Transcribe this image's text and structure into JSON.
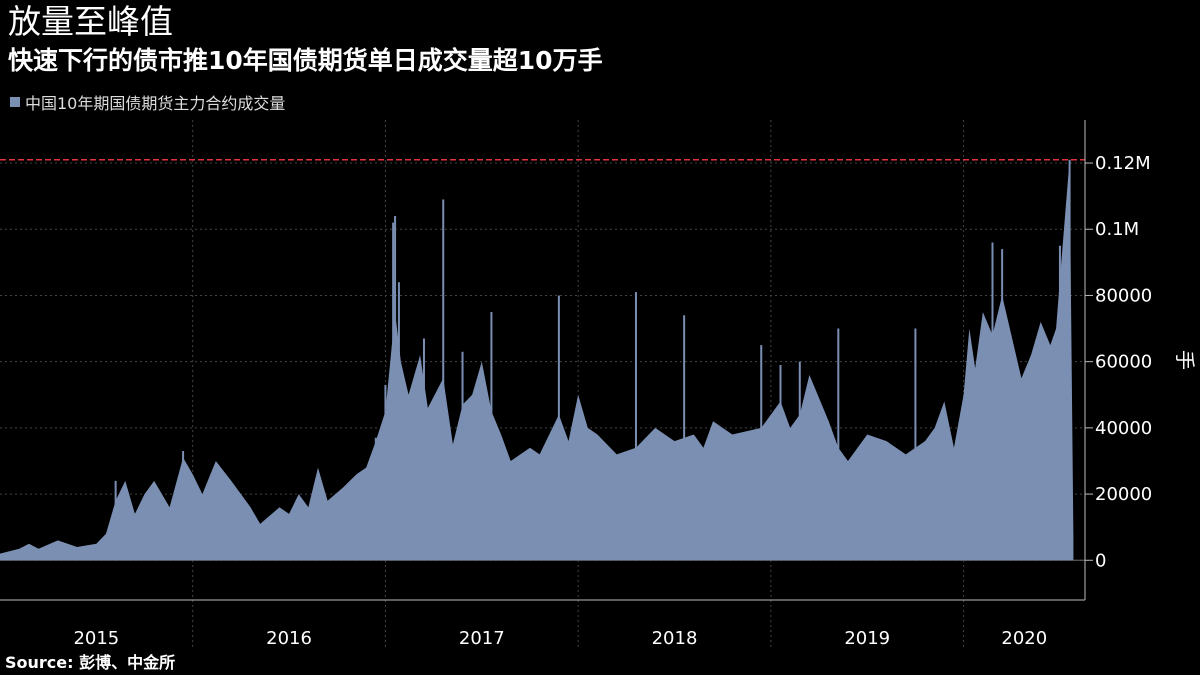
{
  "title": "放量至峰值",
  "subtitle": "快速下行的债市推10年国债期货单日成交量超10万手",
  "source": "Source: 彭博、中金所",
  "chart_data": {
    "type": "bar",
    "series": [
      {
        "name": "中国10年期国债期货主力合约成交量",
        "color": "#7b8fb3"
      }
    ],
    "ylabel": "手",
    "ylim": [
      -12000,
      133000
    ],
    "xlim": [
      2015.0,
      2020.63
    ],
    "yticks": [
      {
        "value": 0,
        "label": "0"
      },
      {
        "value": 20000,
        "label": "20000"
      },
      {
        "value": 40000,
        "label": "40000"
      },
      {
        "value": 60000,
        "label": "60000"
      },
      {
        "value": 80000,
        "label": "80000"
      },
      {
        "value": 100000,
        "label": "0.1M"
      },
      {
        "value": 120000,
        "label": "0.12M"
      }
    ],
    "xticks": [
      "2015",
      "2016",
      "2017",
      "2018",
      "2019",
      "2020"
    ],
    "reference_line": {
      "value": 121000,
      "color": "#e0333b",
      "style": "dashed"
    },
    "grid": true,
    "legend": "top-left",
    "points": [
      [
        2015.0,
        2000
      ],
      [
        2015.1,
        3500
      ],
      [
        2015.15,
        5000
      ],
      [
        2015.2,
        3500
      ],
      [
        2015.3,
        6000
      ],
      [
        2015.4,
        4000
      ],
      [
        2015.5,
        5000
      ],
      [
        2015.55,
        8000
      ],
      [
        2015.6,
        18000
      ],
      [
        2015.65,
        24000
      ],
      [
        2015.7,
        14000
      ],
      [
        2015.75,
        20000
      ],
      [
        2015.8,
        24000
      ],
      [
        2015.88,
        16000
      ],
      [
        2015.95,
        31000
      ],
      [
        2016.0,
        26000
      ],
      [
        2016.05,
        20000
      ],
      [
        2016.12,
        30000
      ],
      [
        2016.2,
        24000
      ],
      [
        2016.3,
        16000
      ],
      [
        2016.35,
        11000
      ],
      [
        2016.45,
        16000
      ],
      [
        2016.5,
        14000
      ],
      [
        2016.55,
        20000
      ],
      [
        2016.6,
        16000
      ],
      [
        2016.65,
        28000
      ],
      [
        2016.7,
        18000
      ],
      [
        2016.78,
        22000
      ],
      [
        2016.85,
        26000
      ],
      [
        2016.9,
        28000
      ],
      [
        2016.95,
        36000
      ],
      [
        2017.0,
        45000
      ],
      [
        2017.05,
        75000
      ],
      [
        2017.08,
        60000
      ],
      [
        2017.12,
        50000
      ],
      [
        2017.18,
        62000
      ],
      [
        2017.22,
        46000
      ],
      [
        2017.3,
        55000
      ],
      [
        2017.35,
        35000
      ],
      [
        2017.4,
        47000
      ],
      [
        2017.45,
        50000
      ],
      [
        2017.5,
        60000
      ],
      [
        2017.55,
        45000
      ],
      [
        2017.6,
        38000
      ],
      [
        2017.65,
        30000
      ],
      [
        2017.75,
        34000
      ],
      [
        2017.8,
        32000
      ],
      [
        2017.9,
        44000
      ],
      [
        2017.95,
        36000
      ],
      [
        2018.0,
        50000
      ],
      [
        2018.05,
        40000
      ],
      [
        2018.1,
        38000
      ],
      [
        2018.2,
        32000
      ],
      [
        2018.3,
        34000
      ],
      [
        2018.4,
        40000
      ],
      [
        2018.5,
        36000
      ],
      [
        2018.6,
        38000
      ],
      [
        2018.65,
        34000
      ],
      [
        2018.7,
        42000
      ],
      [
        2018.8,
        38000
      ],
      [
        2018.95,
        40000
      ],
      [
        2019.0,
        44000
      ],
      [
        2019.05,
        48000
      ],
      [
        2019.1,
        40000
      ],
      [
        2019.15,
        44000
      ],
      [
        2019.2,
        56000
      ],
      [
        2019.3,
        42000
      ],
      [
        2019.35,
        34000
      ],
      [
        2019.4,
        30000
      ],
      [
        2019.5,
        38000
      ],
      [
        2019.6,
        36000
      ],
      [
        2019.7,
        32000
      ],
      [
        2019.8,
        36000
      ],
      [
        2019.85,
        40000
      ],
      [
        2019.9,
        48000
      ],
      [
        2019.95,
        34000
      ],
      [
        2020.0,
        50000
      ],
      [
        2020.03,
        70000
      ],
      [
        2020.06,
        58000
      ],
      [
        2020.1,
        75000
      ],
      [
        2020.15,
        68000
      ],
      [
        2020.2,
        80000
      ],
      [
        2020.3,
        55000
      ],
      [
        2020.35,
        62000
      ],
      [
        2020.4,
        72000
      ],
      [
        2020.45,
        65000
      ],
      [
        2020.48,
        70000
      ],
      [
        2020.5,
        85000
      ],
      [
        2020.55,
        121000
      ],
      [
        2020.57,
        6000
      ]
    ],
    "spikes": [
      [
        2015.6,
        24000
      ],
      [
        2015.95,
        33000
      ],
      [
        2016.12,
        29000
      ],
      [
        2016.95,
        37000
      ],
      [
        2017.0,
        53000
      ],
      [
        2017.04,
        102000
      ],
      [
        2017.05,
        104000
      ],
      [
        2017.07,
        84000
      ],
      [
        2017.2,
        67000
      ],
      [
        2017.3,
        109000
      ],
      [
        2017.4,
        63000
      ],
      [
        2017.55,
        75000
      ],
      [
        2017.9,
        80000
      ],
      [
        2018.3,
        81000
      ],
      [
        2018.55,
        74000
      ],
      [
        2018.95,
        65000
      ],
      [
        2019.05,
        59000
      ],
      [
        2019.15,
        60000
      ],
      [
        2019.35,
        70000
      ],
      [
        2019.75,
        70000
      ],
      [
        2020.15,
        96000
      ],
      [
        2020.2,
        94000
      ],
      [
        2020.5,
        95000
      ],
      [
        2020.55,
        121000
      ]
    ]
  }
}
